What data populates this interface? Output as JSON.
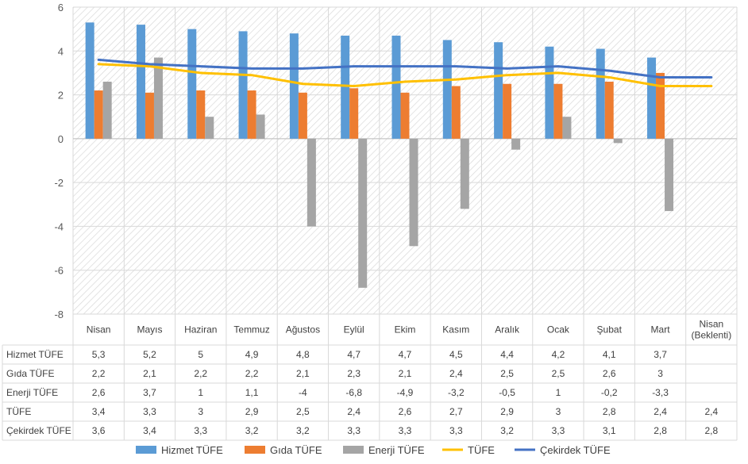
{
  "chart_data": {
    "type": "bar",
    "categories": [
      "Nisan",
      "Mayıs",
      "Haziran",
      "Temmuz",
      "Ağustos",
      "Eylül",
      "Ekim",
      "Kasım",
      "Aralık",
      "Ocak",
      "Şubat",
      "Mart",
      "Nisan (Beklenti)"
    ],
    "category_lines": [
      [
        "Nisan"
      ],
      [
        "Mayıs"
      ],
      [
        "Haziran"
      ],
      [
        "Temmuz"
      ],
      [
        "Ağustos"
      ],
      [
        "Eylül"
      ],
      [
        "Ekim"
      ],
      [
        "Kasım"
      ],
      [
        "Aralık"
      ],
      [
        "Ocak"
      ],
      [
        "Şubat"
      ],
      [
        "Mart"
      ],
      [
        "Nisan",
        "(Beklenti)"
      ]
    ],
    "ylim": [
      -8,
      6
    ],
    "yticks": [
      6,
      4,
      2,
      0,
      -2,
      -4,
      -6,
      -8
    ],
    "ytick_labels": [
      "6",
      "4",
      "2",
      "0",
      "-2",
      "-4",
      "-6",
      "-8"
    ],
    "grid": true,
    "legend_position": "bottom",
    "series": [
      {
        "name": "Hizmet TÜFE",
        "type": "bar",
        "color": "#5b9bd5",
        "values": [
          5.3,
          5.2,
          5,
          4.9,
          4.8,
          4.7,
          4.7,
          4.5,
          4.4,
          4.2,
          4.1,
          3.7,
          null
        ],
        "labels": [
          "5,3",
          "5,2",
          "5",
          "4,9",
          "4,8",
          "4,7",
          "4,7",
          "4,5",
          "4,4",
          "4,2",
          "4,1",
          "3,7",
          ""
        ]
      },
      {
        "name": "Gıda TÜFE",
        "type": "bar",
        "color": "#ed7d31",
        "values": [
          2.2,
          2.1,
          2.2,
          2.2,
          2.1,
          2.3,
          2.1,
          2.4,
          2.5,
          2.5,
          2.6,
          3,
          null
        ],
        "labels": [
          "2,2",
          "2,1",
          "2,2",
          "2,2",
          "2,1",
          "2,3",
          "2,1",
          "2,4",
          "2,5",
          "2,5",
          "2,6",
          "3",
          ""
        ]
      },
      {
        "name": "Enerji TÜFE",
        "type": "bar",
        "color": "#a5a5a5",
        "values": [
          2.6,
          3.7,
          1,
          1.1,
          -4,
          -6.8,
          -4.9,
          -3.2,
          -0.5,
          1,
          -0.2,
          -3.3,
          null
        ],
        "labels": [
          "2,6",
          "3,7",
          "1",
          "1,1",
          "-4",
          "-6,8",
          "-4,9",
          "-3,2",
          "-0,5",
          "1",
          "-0,2",
          "-3,3",
          ""
        ]
      },
      {
        "name": "TÜFE",
        "type": "line",
        "color": "#ffc000",
        "values": [
          3.4,
          3.3,
          3,
          2.9,
          2.5,
          2.4,
          2.6,
          2.7,
          2.9,
          3,
          2.8,
          2.4,
          2.4
        ],
        "labels": [
          "3,4",
          "3,3",
          "3",
          "2,9",
          "2,5",
          "2,4",
          "2,6",
          "2,7",
          "2,9",
          "3",
          "2,8",
          "2,4",
          "2,4"
        ]
      },
      {
        "name": "Çekirdek TÜFE",
        "type": "line",
        "color": "#4472c4",
        "values": [
          3.6,
          3.4,
          3.3,
          3.2,
          3.2,
          3.3,
          3.3,
          3.3,
          3.2,
          3.3,
          3.1,
          2.8,
          2.8
        ],
        "labels": [
          "3,6",
          "3,4",
          "3,3",
          "3,2",
          "3,2",
          "3,3",
          "3,3",
          "3,3",
          "3,2",
          "3,3",
          "3,1",
          "2,8",
          "2,8"
        ]
      }
    ]
  }
}
